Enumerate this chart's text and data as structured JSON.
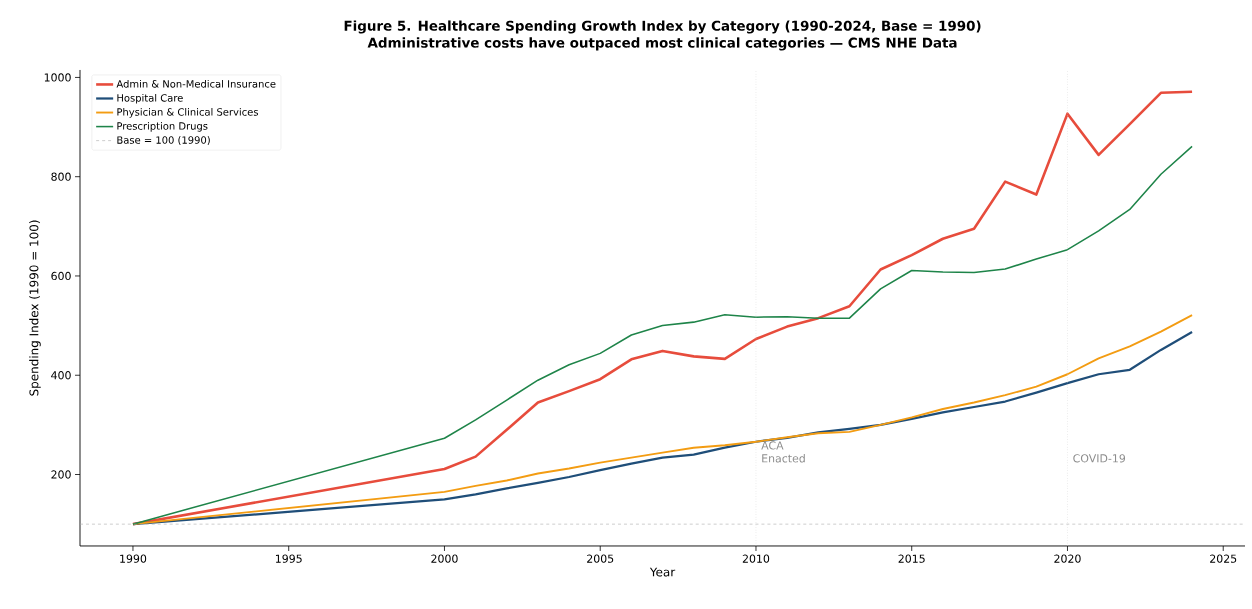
{
  "chart_data": {
    "type": "line",
    "title": "Figure 5. Healthcare Spending Growth Index by Category (1990-2024, Base = 1990)",
    "subtitle": "Administrative costs have outpaced most clinical categories — CMS NHE Data",
    "xlabel": "Year",
    "ylabel": "Spending Index (1990 = 100)",
    "x": [
      1990,
      2000,
      2001,
      2002,
      2003,
      2004,
      2005,
      2006,
      2007,
      2008,
      2009,
      2010,
      2011,
      2012,
      2013,
      2014,
      2015,
      2016,
      2017,
      2018,
      2019,
      2020,
      2021,
      2022,
      2023,
      2024
    ],
    "series": [
      {
        "name": "Admin & Non-Medical Insurance",
        "color": "#e74c3c",
        "values": [
          100,
          211,
          236,
          290,
          345,
          368,
          392,
          432,
          449,
          438,
          433,
          473,
          498,
          515,
          539,
          613,
          642,
          675,
          695,
          790,
          764,
          927,
          844,
          906,
          969,
          971
        ]
      },
      {
        "name": "Hospital Care",
        "color": "#1f4e79",
        "values": [
          100,
          150,
          160,
          172,
          183,
          195,
          209,
          222,
          234,
          240,
          254,
          266,
          274,
          285,
          292,
          300,
          312,
          325,
          336,
          347,
          365,
          384,
          402,
          411,
          451,
          487
        ]
      },
      {
        "name": "Physician & Clinical Services",
        "color": "#f39c12",
        "values": [
          100,
          165,
          177,
          188,
          202,
          212,
          224,
          234,
          244,
          254,
          259,
          266,
          275,
          283,
          286,
          300,
          315,
          332,
          345,
          360,
          377,
          402,
          434,
          458,
          488,
          521
        ]
      },
      {
        "name": "Prescription Drugs",
        "color": "#1e8449",
        "values": [
          100,
          273,
          310,
          350,
          390,
          421,
          444,
          481,
          500,
          507,
          522,
          517,
          518,
          515,
          515,
          574,
          611,
          608,
          607,
          614,
          634,
          653,
          691,
          734,
          805,
          861
        ]
      }
    ],
    "ref_lines": [
      {
        "axis": "y",
        "value": 100,
        "label": "Base = 100 (1990)",
        "color": "#aaaaaa",
        "line_style": "dashed"
      },
      {
        "axis": "x",
        "value": 2010,
        "label": "ACA Enacted",
        "color": "#cccccc",
        "line_style": "dotted"
      },
      {
        "axis": "x",
        "value": 2020,
        "label": "COVID-19",
        "color": "#cccccc",
        "line_style": "dotted"
      }
    ],
    "xlim": [
      1988.3,
      2025.7
    ],
    "ylim": [
      56,
      1015
    ],
    "xticks": [
      1990,
      1995,
      2000,
      2005,
      2010,
      2015,
      2020,
      2025
    ],
    "yticks": [
      200,
      400,
      600,
      800,
      1000
    ],
    "grid": false,
    "legend": "top left",
    "marker": "none",
    "line_style": "solid"
  }
}
